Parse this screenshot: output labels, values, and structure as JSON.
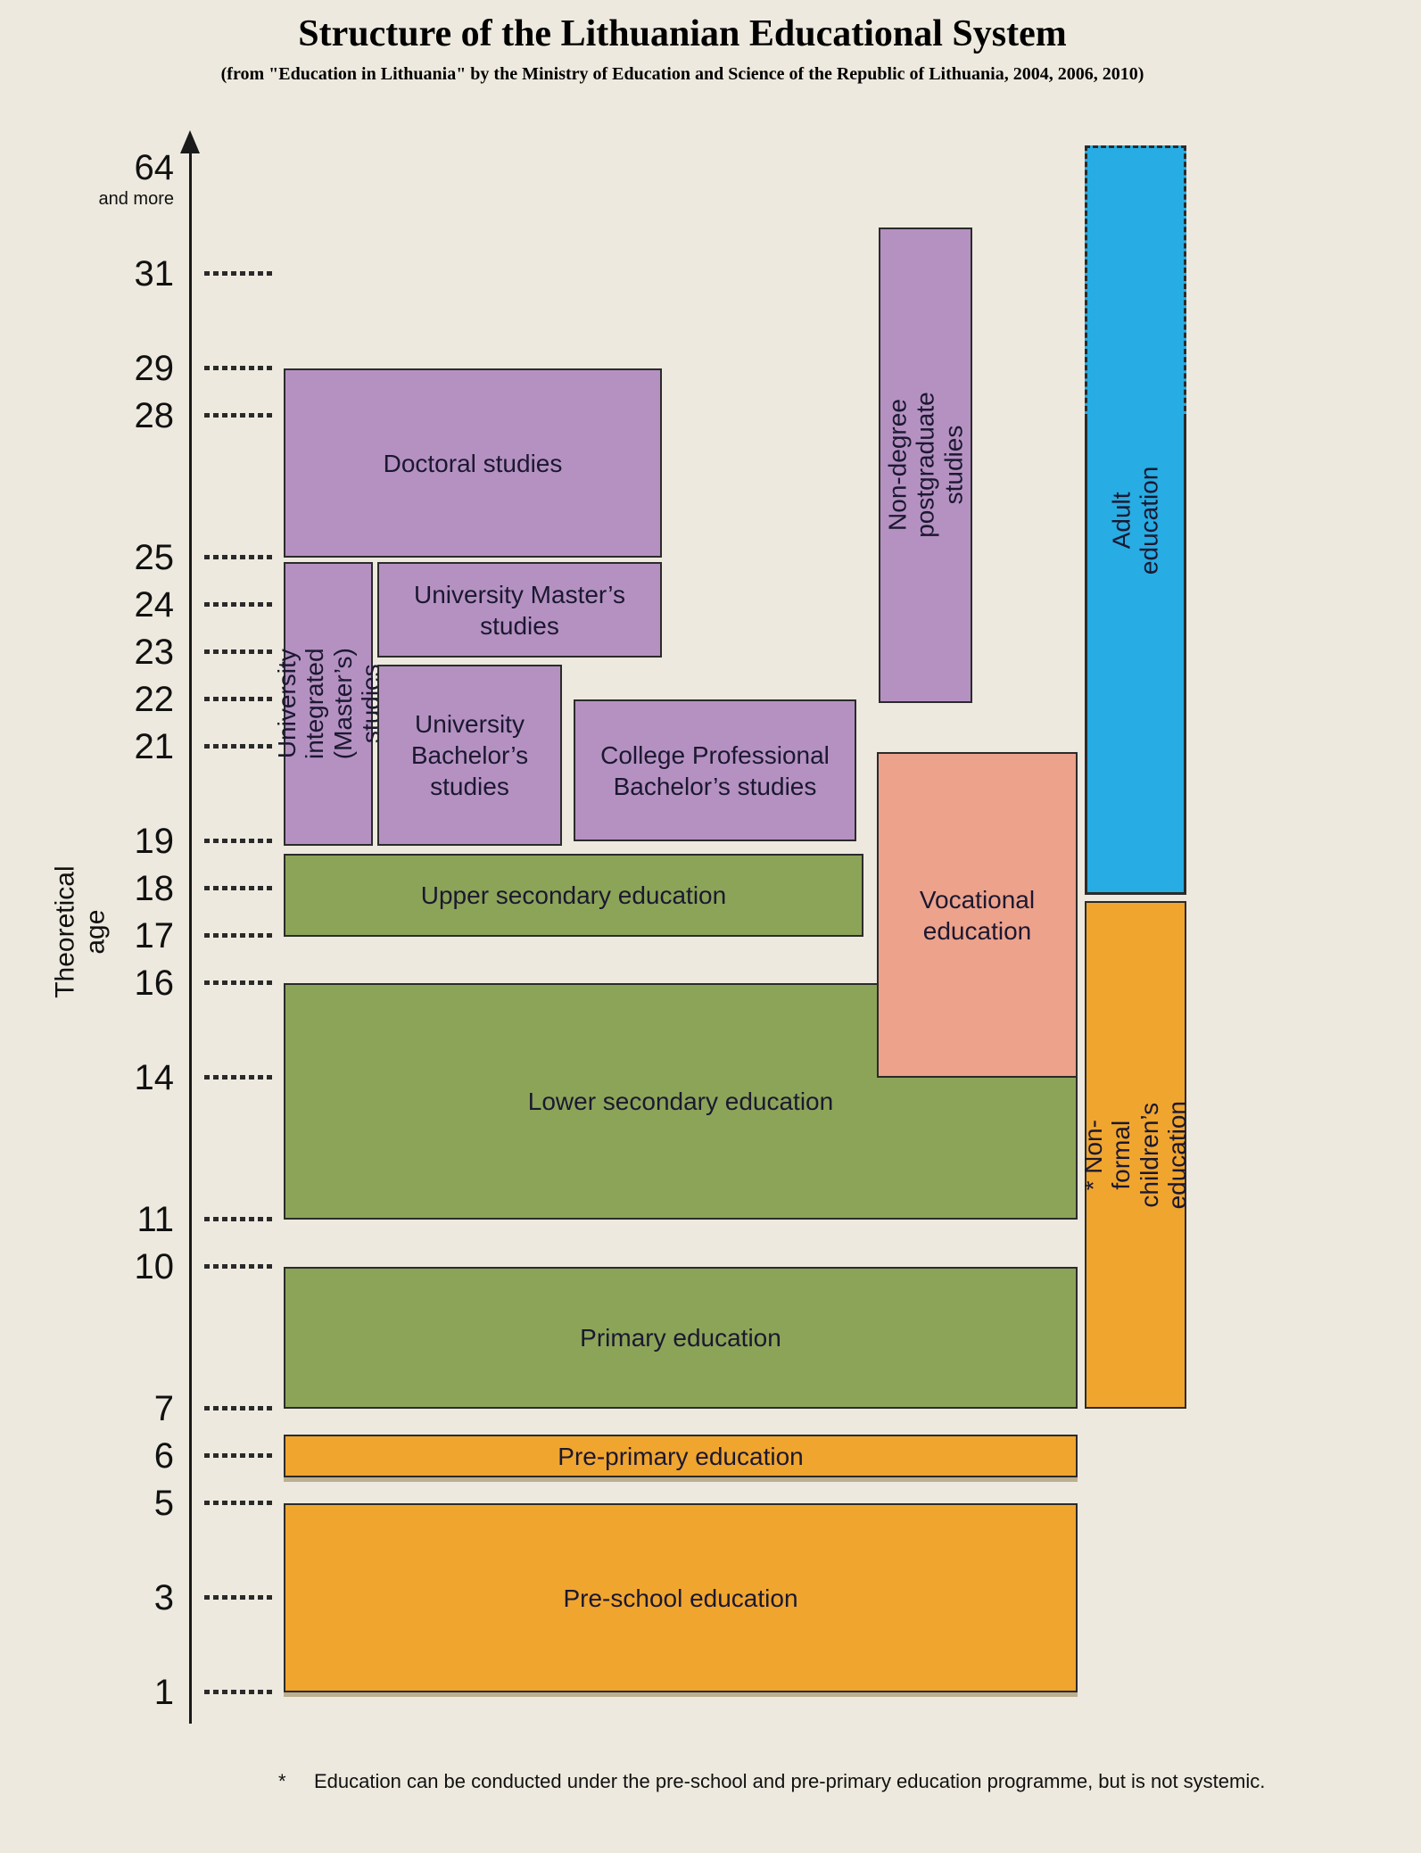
{
  "title": "Structure of the Lithuanian Educational System",
  "subtitle": "(from \"Education in Lithuania\" by the Ministry of Education and Science of the Republic of Lithuania, 2004, 2006, 2010)",
  "axis": {
    "label": "Theoretical age",
    "top_tick": {
      "value": "64",
      "suffix": "and more"
    },
    "ticks": [
      31,
      29,
      28,
      25,
      24,
      23,
      22,
      21,
      19,
      18,
      17,
      16,
      14,
      11,
      10,
      7,
      6,
      5,
      3,
      1
    ]
  },
  "boxes": {
    "doctoral": {
      "label": "Doctoral studies",
      "age_from": 25,
      "age_to": 29,
      "color": "purple"
    },
    "integrated": {
      "label": "University integrated\n(Master’s) studies",
      "age_from": 19,
      "age_to": 25,
      "color": "purple"
    },
    "masters": {
      "label": "University Master’s\nstudies",
      "age_from": 23,
      "age_to": 25,
      "color": "purple"
    },
    "bachelors": {
      "label": "University\nBachelor’s\nstudies",
      "age_from": 19,
      "age_to": 23,
      "color": "purple"
    },
    "college": {
      "label": "College Professional\nBachelor’s studies",
      "age_from": 19,
      "age_to": 22,
      "color": "purple"
    },
    "nondegree": {
      "label": "Non-degree postgraduate studies",
      "age_from": 22,
      "age_to": 32,
      "color": "purple"
    },
    "adult": {
      "label": "Adult education",
      "age_from": 18,
      "age_to": "64 and more",
      "color": "blue"
    },
    "upper_secondary": {
      "label": "Upper secondary education",
      "age_from": 17,
      "age_to": 19,
      "color": "green"
    },
    "vocational": {
      "label": "Vocational\neducation",
      "age_from": 14,
      "age_to": 21,
      "color": "salmon"
    },
    "lower_secondary": {
      "label": "Lower secondary education",
      "age_from": 11,
      "age_to": 16,
      "color": "green"
    },
    "nonformal": {
      "label": "* Non-formal children’s education",
      "age_from": 7,
      "age_to": 18,
      "color": "orange"
    },
    "primary": {
      "label": "Primary education",
      "age_from": 7,
      "age_to": 10,
      "color": "green"
    },
    "pre_primary": {
      "label": "Pre-primary education",
      "age_from": 6,
      "age_to": 6,
      "color": "orange"
    },
    "pre_school": {
      "label": "Pre-school education",
      "age_from": 1,
      "age_to": 5,
      "color": "orange"
    }
  },
  "footnote": {
    "marker": "*",
    "text": "Education can be conducted under the pre-school and pre-primary education programme, but is not systemic."
  },
  "colors": {
    "background": "#EDE9DE",
    "purple": "#B591C2",
    "green": "#8CA458",
    "orange": "#F0A52F",
    "salmon": "#EDA28C",
    "blue": "#27ACE3",
    "border": "#2B2B2B",
    "text": "#1B1830"
  }
}
